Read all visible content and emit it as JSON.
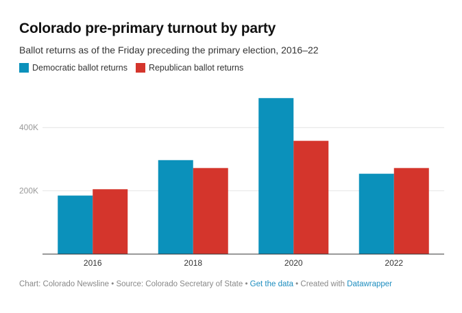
{
  "header": {
    "title": "Colorado pre-primary turnout by party",
    "subtitle": "Ballot returns as of the Friday preceding the primary election, 2016–22"
  },
  "legend": {
    "items": [
      {
        "label": "Democratic ballot returns",
        "color": "#0b91bb"
      },
      {
        "label": "Republican ballot returns",
        "color": "#d4352c"
      }
    ]
  },
  "footer": {
    "chart_credit": "Chart: Colorado Newsline",
    "separator": "•",
    "source": "Source: Colorado Secretary of State",
    "get_data": "Get the data",
    "created_with": "Created with",
    "tool": "Datawrapper"
  },
  "chart_data": {
    "type": "bar",
    "title": "Colorado pre-primary turnout by party",
    "categories": [
      "2016",
      "2018",
      "2020",
      "2022"
    ],
    "series": [
      {
        "name": "Democratic ballot returns",
        "color": "#0b91bb",
        "values": [
          185000,
          297000,
          493000,
          254000
        ]
      },
      {
        "name": "Republican ballot returns",
        "color": "#d4352c",
        "values": [
          205000,
          272000,
          358000,
          272000
        ]
      }
    ],
    "yticks": [
      {
        "value": 200000,
        "label": "200K"
      },
      {
        "value": 400000,
        "label": "400K"
      }
    ],
    "ylim": [
      0,
      500000
    ],
    "grid": true,
    "xlabel": "",
    "ylabel": ""
  }
}
